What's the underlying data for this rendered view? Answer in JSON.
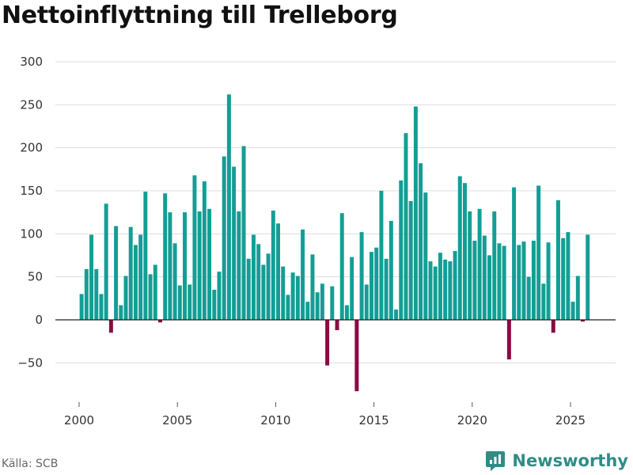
{
  "chart_data": {
    "type": "bar",
    "title": "Nettoinflyttning till Trelleborg",
    "xlabel": "",
    "ylabel": "",
    "ylim": [
      -90,
      300
    ],
    "xlim": [
      1999.1,
      2026.6
    ],
    "y_ticks": [
      300,
      250,
      200,
      150,
      100,
      50,
      0,
      -50
    ],
    "y_tick_labels": [
      "300",
      "250",
      "200",
      "150",
      "100",
      "50",
      "0",
      "−50"
    ],
    "x_ticks": [
      2000,
      2005,
      2010,
      2015,
      2020,
      2025
    ],
    "x_tick_labels": [
      "2000",
      "2005",
      "2010",
      "2015",
      "2020",
      "2025"
    ],
    "grid": true,
    "positive_color": "#139e95",
    "negative_color": "#8b0a41",
    "frequency": "quarterly",
    "start": "2000-Q1",
    "values": [
      30,
      59,
      99,
      59,
      30,
      135,
      -15,
      109,
      17,
      51,
      108,
      87,
      99,
      149,
      53,
      64,
      -3,
      147,
      125,
      89,
      40,
      125,
      41,
      168,
      126,
      161,
      129,
      35,
      56,
      190,
      262,
      178,
      126,
      202,
      71,
      99,
      88,
      64,
      77,
      127,
      112,
      62,
      29,
      55,
      51,
      105,
      21,
      76,
      32,
      42,
      -53,
      39,
      -12,
      124,
      17,
      73,
      -83,
      102,
      41,
      79,
      84,
      150,
      71,
      115,
      12,
      162,
      217,
      138,
      248,
      182,
      148,
      68,
      62,
      78,
      70,
      68,
      80,
      167,
      159,
      126,
      92,
      129,
      98,
      75,
      126,
      89,
      86,
      -46,
      154,
      87,
      91,
      50,
      92,
      156,
      42,
      90,
      -15,
      139,
      95,
      102,
      21,
      51,
      -2,
      99
    ]
  },
  "footer": {
    "source": "Källa: SCB",
    "brand": "Newsworthy"
  },
  "colors": {
    "axis": "#222222",
    "grid": "#dddddd",
    "brand": "#2f8d86"
  }
}
